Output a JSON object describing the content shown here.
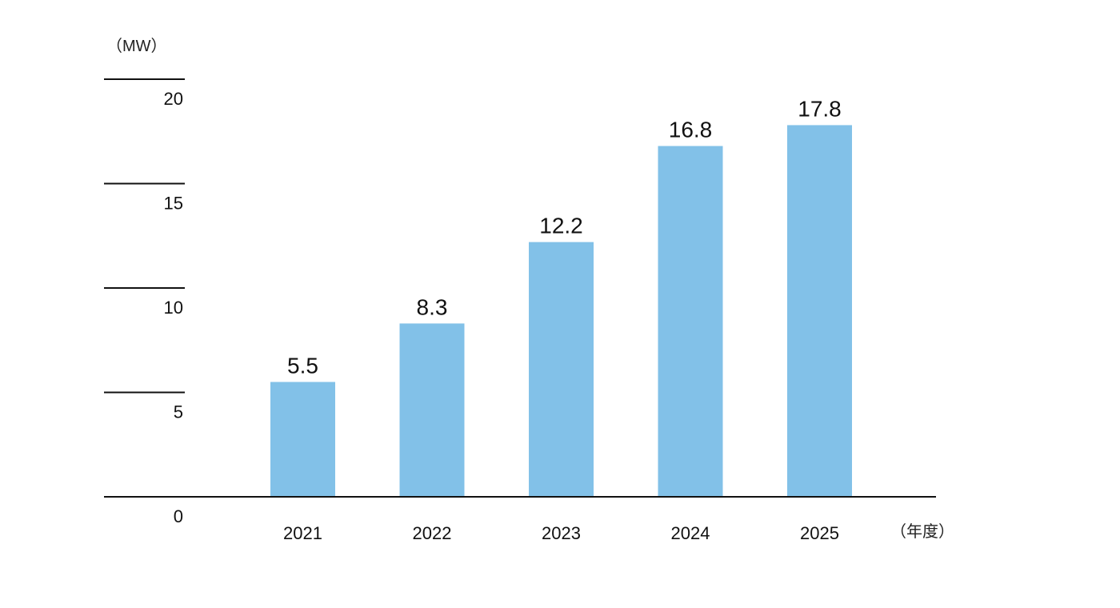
{
  "chart_data": {
    "type": "bar",
    "categories": [
      "2021",
      "2022",
      "2023",
      "2024",
      "2025"
    ],
    "values": [
      5.5,
      8.3,
      12.2,
      16.8,
      17.8
    ],
    "value_labels": [
      "5.5",
      "8.3",
      "12.2",
      "16.8",
      "17.8"
    ],
    "title": "",
    "xlabel": "（年度）",
    "ylabel": "（MW）",
    "ylim": [
      0,
      20
    ],
    "yticks": [
      0,
      5,
      10,
      15,
      20
    ],
    "ytick_labels": [
      "0",
      "5",
      "10",
      "15",
      "20"
    ],
    "grid": false,
    "legend": "none",
    "bar_color": "#82c1e8",
    "axis_color": "#111111"
  }
}
